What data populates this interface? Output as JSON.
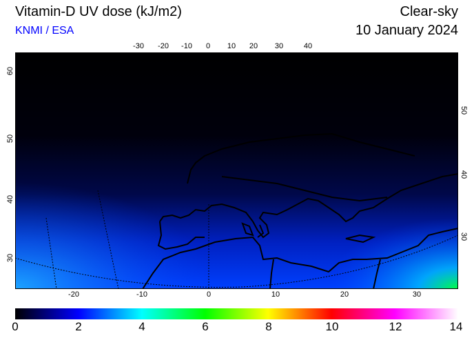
{
  "header": {
    "title": "Vitamin-D UV dose (kJ/m2)",
    "credit": "KNMI / ESA",
    "mode": "Clear-sky",
    "date": "10 January 2024"
  },
  "map": {
    "top_lon_labels": [
      "-30",
      "-20",
      "-10",
      "0",
      "10",
      "20",
      "30",
      "40"
    ],
    "bottom_lon_labels": [
      "-20",
      "-10",
      "0",
      "10",
      "20",
      "30"
    ],
    "left_lat_labels": [
      "60",
      "50",
      "40",
      "30"
    ],
    "right_lat_labels": [
      "50",
      "40",
      "30"
    ]
  },
  "colorbar": {
    "labels": [
      "0",
      "2",
      "4",
      "6",
      "8",
      "10",
      "12",
      "14"
    ],
    "colors": [
      "#000000",
      "#0000ff",
      "#00ffff",
      "#00ff00",
      "#ffff00",
      "#ff0000",
      "#ff00ff",
      "#ffffff"
    ]
  }
}
